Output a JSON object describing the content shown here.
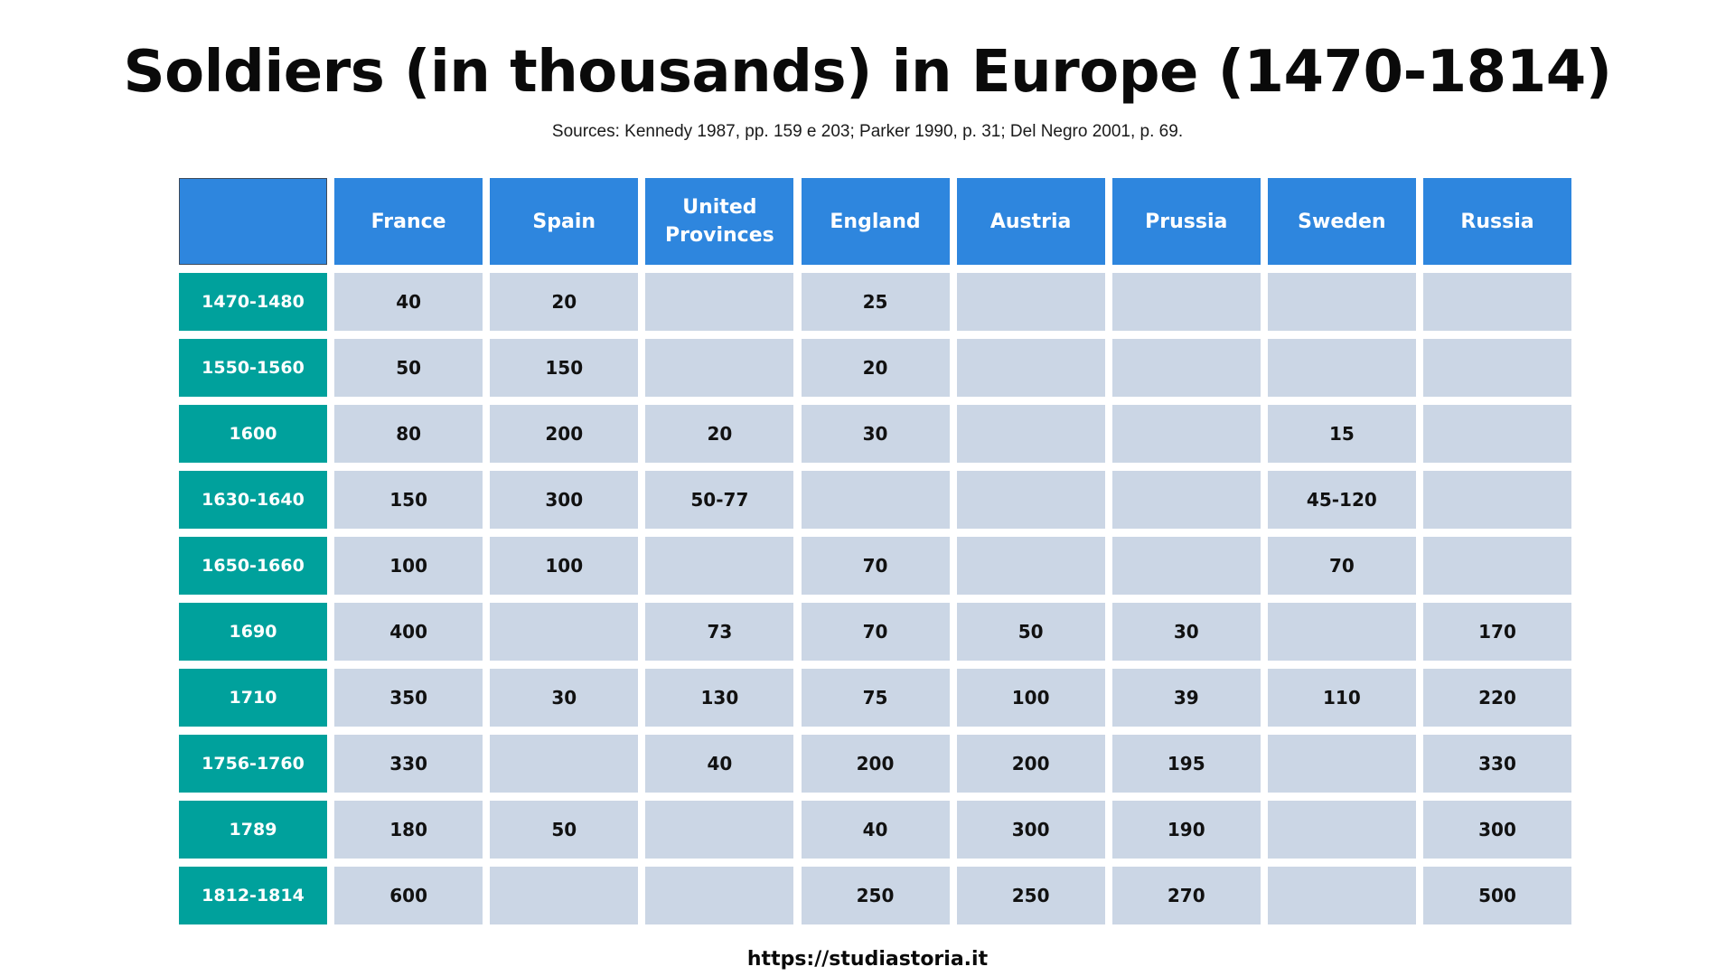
{
  "title": "Soldiers (in thousands) in Europe (1470-1814)",
  "subtitle": "Sources: Kennedy 1987, pp. 159 e 203; Parker 1990, p. 31; Del Negro 2001, p. 69.",
  "footer": "https://studiastoria.it",
  "colors": {
    "header_blue": "#2e86de",
    "row_header_teal": "#00a19c",
    "data_cell": "#cbd6e5"
  },
  "chart_data": {
    "type": "table",
    "title": "Soldiers (in thousands) in Europe (1470-1814)",
    "subtitle": "Sources: Kennedy 1987, pp. 159 e 203; Parker 1990, p. 31; Del Negro 2001, p. 69.",
    "columns": [
      "France",
      "Spain",
      "United Provinces",
      "England",
      "Austria",
      "Prussia",
      "Sweden",
      "Russia"
    ],
    "rows": [
      {
        "label": "1470-1480",
        "values": [
          "40",
          "20",
          "",
          "25",
          "",
          "",
          "",
          ""
        ]
      },
      {
        "label": "1550-1560",
        "values": [
          "50",
          "150",
          "",
          "20",
          "",
          "",
          "",
          ""
        ]
      },
      {
        "label": "1600",
        "values": [
          "80",
          "200",
          "20",
          "30",
          "",
          "",
          "15",
          ""
        ]
      },
      {
        "label": "1630-1640",
        "values": [
          "150",
          "300",
          "50-77",
          "",
          "",
          "",
          "45-120",
          ""
        ]
      },
      {
        "label": "1650-1660",
        "values": [
          "100",
          "100",
          "",
          "70",
          "",
          "",
          "70",
          ""
        ]
      },
      {
        "label": "1690",
        "values": [
          "400",
          "",
          "73",
          "70",
          "50",
          "30",
          "",
          "170"
        ]
      },
      {
        "label": "1710",
        "values": [
          "350",
          "30",
          "130",
          "75",
          "100",
          "39",
          "110",
          "220"
        ]
      },
      {
        "label": "1756-1760",
        "values": [
          "330",
          "",
          "40",
          "200",
          "200",
          "195",
          "",
          "330"
        ]
      },
      {
        "label": "1789",
        "values": [
          "180",
          "50",
          "",
          "40",
          "300",
          "190",
          "",
          "300"
        ]
      },
      {
        "label": "1812-1814",
        "values": [
          "600",
          "",
          "",
          "250",
          "250",
          "270",
          "",
          "500"
        ]
      }
    ]
  }
}
